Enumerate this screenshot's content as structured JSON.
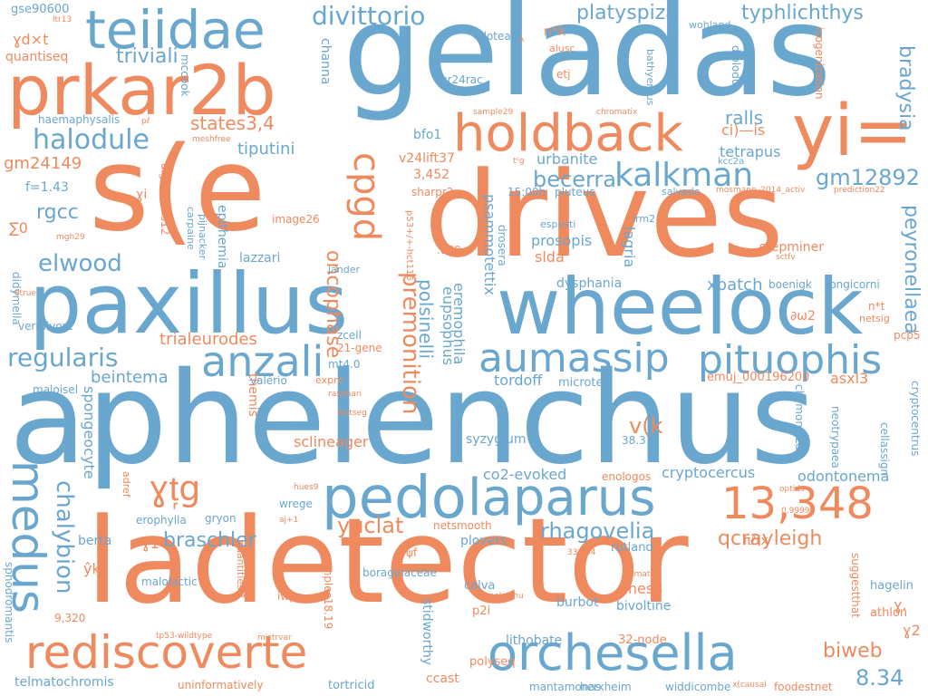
{
  "colors": {
    "blue": "#6aa7cf",
    "orange": "#ef8a5f",
    "background": "#ffffff"
  },
  "words": [
    "aphelenchus",
    "ladetector",
    "geladas",
    "drives",
    "s(e",
    "paxillus",
    "wheelock",
    "prkar2b",
    "teiidae",
    "holdback",
    "yi=",
    "pedo",
    "laparus",
    "13,348",
    "orchesella",
    "rediscoverte",
    "aumassip",
    "pituophis",
    "anzali",
    "medus",
    "cpgd",
    "kalkman",
    "halodule",
    "elwood",
    "regularis",
    "divittorio",
    "platyspiza",
    "typhlichthys",
    "triviali",
    "states3,4",
    "gm12892",
    "becerra",
    "premonition",
    "braschler",
    "yuclat",
    "rhagovelia",
    "qcrayleigh",
    "chalybion",
    "biweb",
    "8.34",
    "oncophase",
    "polsinelli",
    "peyronellaea",
    "tiputini",
    "xbatch",
    "gm24149",
    "rgcc",
    "bradysia",
    "ralls",
    "tetrapus",
    "ci)—is",
    "v24lift37",
    "urbanite",
    "prosopis",
    "slda",
    "lagria",
    "dysphania",
    "psammotettix",
    "eupsophus",
    "eremophila",
    "trialeurodes",
    "beintema",
    "tordoff",
    "microtek",
    "sclineager",
    "syzygium",
    "co2-evoked",
    "cryptocercus",
    "odontonema",
    "enologos",
    "spongeocyte",
    "berta",
    "gryon",
    "erophylla",
    "plovers",
    "rutland",
    "lines8",
    "burbot",
    "bivoltine",
    "lithobate",
    "32-node",
    "stidworthy",
    "p2i",
    "calva",
    "polyseq",
    "ccast",
    "telmatochromis",
    "uninformatively",
    "tortricid",
    "mantamonas",
    "herxheim",
    "widdicombe",
    "foodestnet",
    "hagelin",
    "athlon",
    "channa",
    "epithemia",
    "pijnacker",
    "carpaine",
    "algorithms12",
    "image26",
    "mccook",
    "haemaphysalis",
    "quantiseq",
    "gse90600",
    "n*k",
    "idotea",
    "gr24rac",
    "wohland",
    "bathyergus",
    "diplodus",
    "isogenization",
    "etj",
    "alusc",
    "kcc2a",
    "salvado",
    "mosmann_2014_activ",
    "prediction22",
    "stepminer",
    "boenigk",
    "longicorni",
    "emuj_000196200",
    "asxl3",
    "chymomyza",
    "neotrypaea",
    "cellassign",
    "cryptocentrus",
    "pcp5",
    "netsig",
    "n*t",
    "lazzari",
    "jander",
    "vermivore",
    "didymella",
    "maloisel",
    "themis",
    "valério",
    "expre",
    "rasbhari",
    "fastseg",
    "mt4.0",
    "21-gene",
    "zcell",
    "hues9",
    "wrege",
    "aj+1",
    "adref",
    "netsmooth",
    "boraginaceae",
    "ψf",
    "samples18.19",
    "iwpc",
    "quantities.1",
    "sphodromantis",
    "malolactic",
    "tp53-wildtype",
    "mistrvar",
    "9,320",
    "33,454",
    "scmatch",
    "peakachu",
    "suggestthat",
    "0.99998",
    "optids",
    "πℓ(x",
    "ŷk",
    "ɣ1",
    "ɣt᷊g",
    "bfo1",
    "3,452",
    "sharpr2",
    "15:00h",
    "pluteus",
    "esposti",
    "lrm2",
    ".889",
    "drosera",
    "p53+/+-hct116",
    "f=1.43",
    "∑0",
    "mgh29",
    "θtrue",
    "sample29",
    "chromatix",
    "meshfree",
    "v(k",
    "38.31",
    "∂ω2",
    "x(causal",
    "ɣ2",
    "ɣd×t",
    "ɣi",
    "tᶜg",
    "ltr13",
    "ɣ.",
    "pℓ",
    ",λ",
    "sctfv"
  ]
}
